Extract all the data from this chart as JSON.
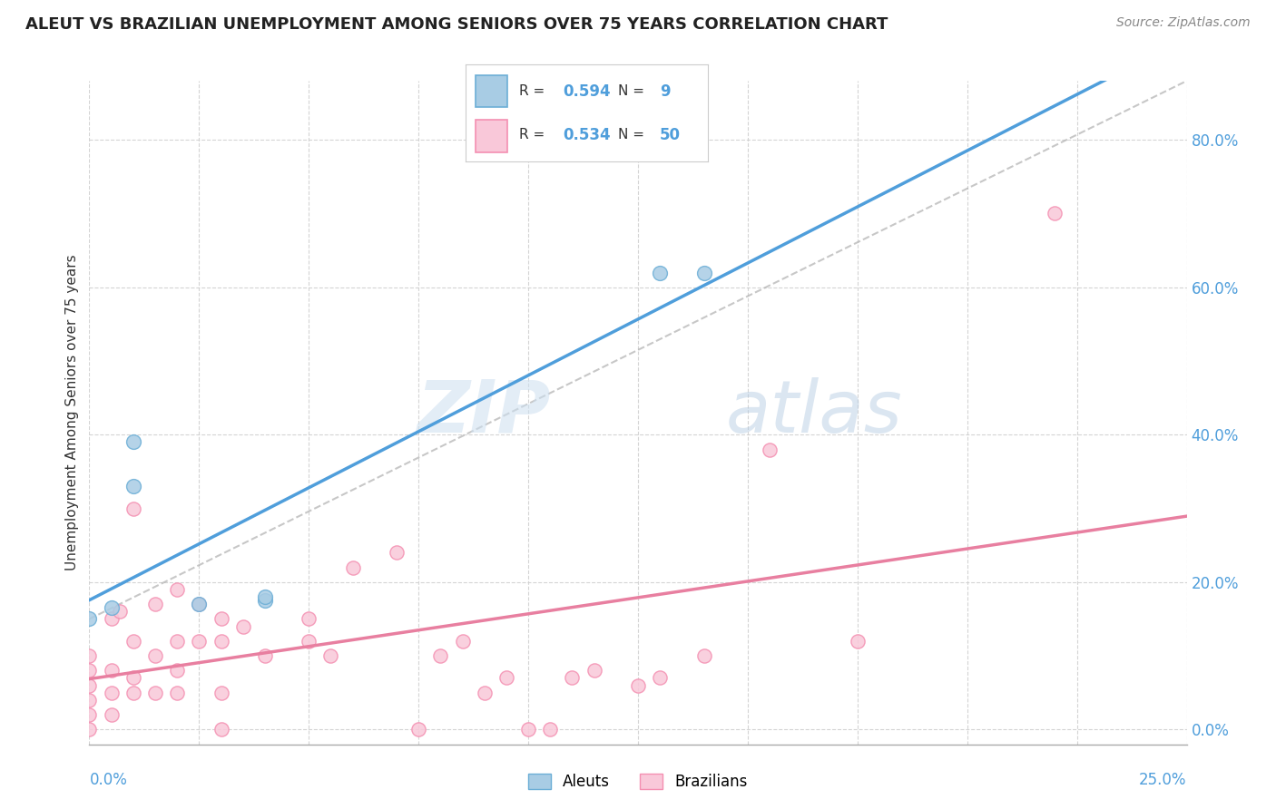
{
  "title": "ALEUT VS BRAZILIAN UNEMPLOYMENT AMONG SENIORS OVER 75 YEARS CORRELATION CHART",
  "source": "Source: ZipAtlas.com",
  "ylabel": "Unemployment Among Seniors over 75 years",
  "ylabel_right_labels": [
    "0.0%",
    "20.0%",
    "40.0%",
    "60.0%",
    "80.0%"
  ],
  "ylabel_right_values": [
    0.0,
    0.2,
    0.4,
    0.6,
    0.8
  ],
  "xmin": 0.0,
  "xmax": 0.25,
  "ymin": -0.02,
  "ymax": 0.88,
  "aleuts_R": 0.594,
  "aleuts_N": 9,
  "brazilians_R": 0.534,
  "brazilians_N": 50,
  "aleuts_color": "#6baed6",
  "aleuts_fill": "#a8cce4",
  "brazilians_color": "#f48fb1",
  "brazilians_fill": "#f9c8d9",
  "aleuts_x": [
    0.0,
    0.005,
    0.01,
    0.01,
    0.025,
    0.04,
    0.04,
    0.13,
    0.14
  ],
  "aleuts_y": [
    0.15,
    0.165,
    0.33,
    0.39,
    0.17,
    0.175,
    0.18,
    0.62,
    0.62
  ],
  "brazilians_x": [
    0.0,
    0.0,
    0.0,
    0.0,
    0.0,
    0.0,
    0.005,
    0.005,
    0.005,
    0.005,
    0.007,
    0.01,
    0.01,
    0.01,
    0.01,
    0.015,
    0.015,
    0.015,
    0.02,
    0.02,
    0.02,
    0.02,
    0.025,
    0.025,
    0.03,
    0.03,
    0.03,
    0.03,
    0.035,
    0.04,
    0.05,
    0.05,
    0.055,
    0.06,
    0.07,
    0.075,
    0.08,
    0.085,
    0.09,
    0.095,
    0.1,
    0.105,
    0.11,
    0.115,
    0.125,
    0.13,
    0.14,
    0.155,
    0.175,
    0.22
  ],
  "brazilians_y": [
    0.0,
    0.02,
    0.04,
    0.06,
    0.08,
    0.1,
    0.02,
    0.05,
    0.08,
    0.15,
    0.16,
    0.05,
    0.07,
    0.12,
    0.3,
    0.05,
    0.1,
    0.17,
    0.05,
    0.08,
    0.12,
    0.19,
    0.12,
    0.17,
    0.0,
    0.05,
    0.12,
    0.15,
    0.14,
    0.1,
    0.12,
    0.15,
    0.1,
    0.22,
    0.24,
    0.0,
    0.1,
    0.12,
    0.05,
    0.07,
    0.0,
    0.0,
    0.07,
    0.08,
    0.06,
    0.07,
    0.1,
    0.38,
    0.12,
    0.7
  ],
  "reference_line_color": "#b0b0b0",
  "aleuts_line_color": "#4f9edb",
  "brazilians_line_color": "#e87fa0",
  "watermark_zip": "ZIP",
  "watermark_atlas": "atlas",
  "background_color": "#ffffff",
  "grid_color": "#d0d0d0"
}
